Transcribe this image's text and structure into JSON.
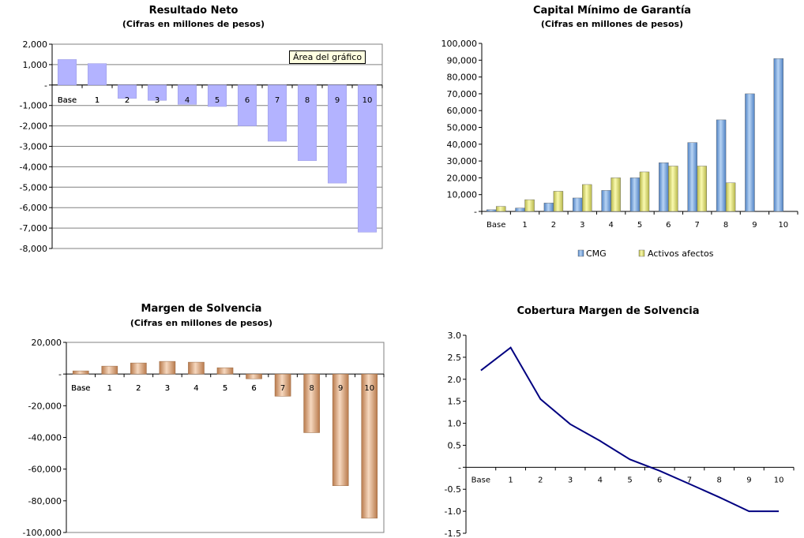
{
  "tooltip": "Área del gráfico",
  "chart_data": [
    {
      "id": "resultado",
      "type": "bar",
      "title": "Resultado Neto",
      "subtitle": "(Cifras en millones de pesos)",
      "categories": [
        "Base",
        "1",
        "2",
        "3",
        "4",
        "5",
        "6",
        "7",
        "8",
        "9",
        "10"
      ],
      "values": [
        1250,
        1050,
        -650,
        -750,
        -950,
        -1050,
        -2000,
        -2750,
        -3700,
        -4800,
        -7200
      ],
      "ylim": [
        -8000,
        2000
      ],
      "yticks": [
        2000,
        1000,
        0,
        -1000,
        -2000,
        -3000,
        -4000,
        -5000,
        -6000,
        -7000,
        -8000
      ],
      "ytick_labels": [
        "2,000",
        "1,000",
        "-",
        "-1,000",
        "-2,000",
        "-3,000",
        "-4,000",
        "-5,000",
        "-6,000",
        "-7,000",
        "-8,000"
      ],
      "grid": true,
      "bar_color": "#b3b3ff"
    },
    {
      "id": "cmg",
      "type": "bar",
      "title": "Capital Mínimo de Garantía",
      "subtitle": "(Cifras en millones de pesos)",
      "categories": [
        "Base",
        "1",
        "2",
        "3",
        "4",
        "5",
        "6",
        "7",
        "8",
        "9",
        "10"
      ],
      "series": [
        {
          "name": "CMG",
          "color": "#6f9fd8",
          "values": [
            1000,
            2000,
            5000,
            8000,
            12500,
            20000,
            29000,
            41000,
            54500,
            70000,
            91000
          ]
        },
        {
          "name": "Activos afectos",
          "color": "#e0e07a",
          "values": [
            3000,
            7000,
            12000,
            16000,
            20000,
            23500,
            27000,
            27000,
            17000,
            0,
            0
          ]
        }
      ],
      "ylim": [
        0,
        100000
      ],
      "yticks": [
        100000,
        90000,
        80000,
        70000,
        60000,
        50000,
        40000,
        30000,
        20000,
        10000,
        0
      ],
      "ytick_labels": [
        "100,000",
        "90,000",
        "80,000",
        "70,000",
        "60,000",
        "50,000",
        "40,000",
        "30,000",
        "20,000",
        "10,000",
        "-"
      ],
      "legend_position": "bottom",
      "grid": false
    },
    {
      "id": "margen",
      "type": "bar",
      "title": "Margen de Solvencia",
      "subtitle": "(Cifras en millones de pesos)",
      "categories": [
        "Base",
        "1",
        "2",
        "3",
        "4",
        "5",
        "6",
        "7",
        "8",
        "9",
        "10"
      ],
      "values": [
        2000,
        5000,
        7000,
        8000,
        7500,
        4000,
        -3000,
        -14000,
        -37000,
        -70500,
        -91000
      ],
      "ylim": [
        -100000,
        20000
      ],
      "yticks": [
        20000,
        0,
        -20000,
        -40000,
        -60000,
        -80000,
        -100000
      ],
      "ytick_labels": [
        "20,000",
        "-",
        "-20,000",
        "-40,000",
        "-60,000",
        "-80,000",
        "-100,000"
      ],
      "grid": false,
      "bar_color": "#d99a6c"
    },
    {
      "id": "cobertura",
      "type": "line",
      "title": "Cobertura Margen de Solvencia",
      "subtitle": "",
      "categories": [
        "Base",
        "1",
        "2",
        "3",
        "4",
        "5",
        "6",
        "7",
        "8",
        "9",
        "10"
      ],
      "values": [
        2.2,
        2.72,
        1.55,
        0.98,
        0.6,
        0.18,
        -0.08,
        -0.38,
        -0.68,
        -1.0,
        -1.0
      ],
      "ylim": [
        -1.5,
        3.0
      ],
      "yticks": [
        3.0,
        2.5,
        2.0,
        1.5,
        1.0,
        0.5,
        0,
        -0.5,
        -1.0,
        -1.5
      ],
      "ytick_labels": [
        "3.0",
        "2.5",
        "2.0",
        "1.5",
        "1.0",
        "0.5",
        "-",
        "-0.5",
        "-1.0",
        "-1.5"
      ],
      "grid": false,
      "line_color": "#000080"
    }
  ]
}
